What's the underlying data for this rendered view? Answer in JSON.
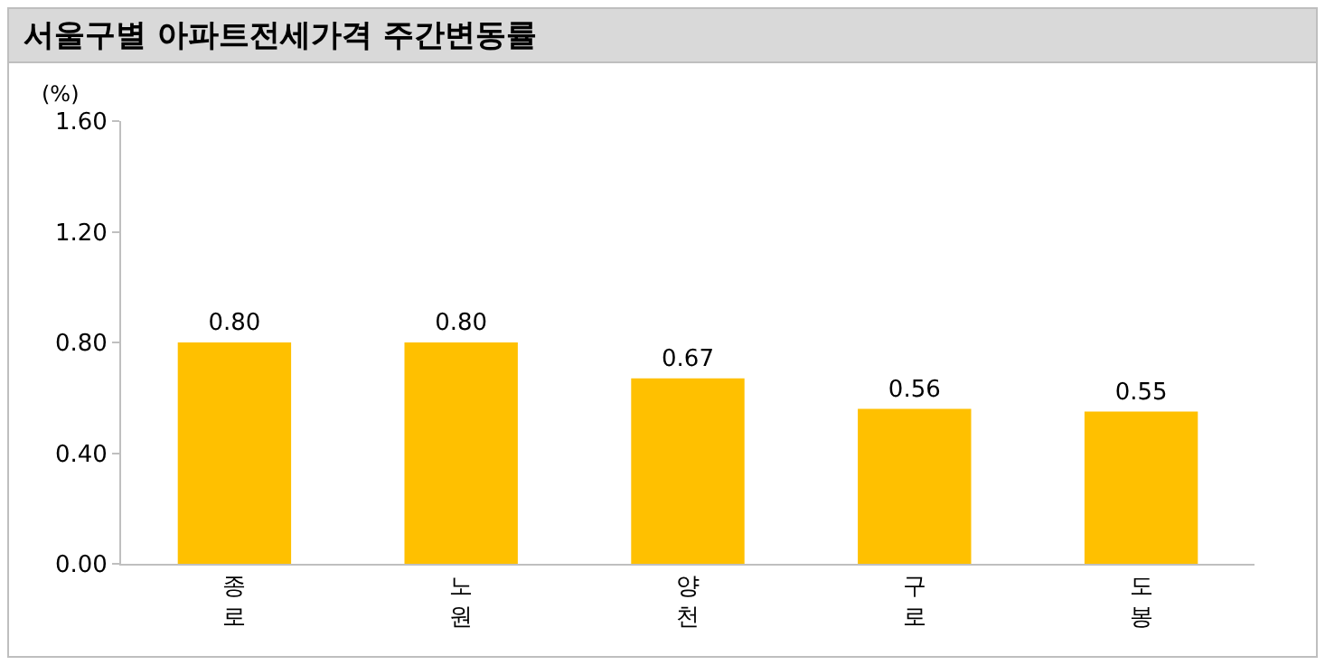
{
  "chart_data": {
    "type": "bar",
    "title": "서울구별 아파트전세가격 주간변동률",
    "ylabel": "(%)",
    "categories": [
      "종로",
      "노원",
      "양천",
      "구로",
      "도봉"
    ],
    "values": [
      0.8,
      0.8,
      0.67,
      0.56,
      0.55
    ],
    "color": "#ffc000",
    "ylim": [
      0,
      1.6
    ],
    "yticks": [
      {
        "value": 0,
        "label": "0.00"
      },
      {
        "value": 0.4,
        "label": "0.40"
      },
      {
        "value": 0.8,
        "label": "0.80"
      },
      {
        "value": 1.2,
        "label": "1.20"
      },
      {
        "value": 1.6,
        "label": "1.60"
      }
    ],
    "value_labels": [
      "0.80",
      "0.80",
      "0.67",
      "0.56",
      "0.55"
    ],
    "grid": false
  }
}
